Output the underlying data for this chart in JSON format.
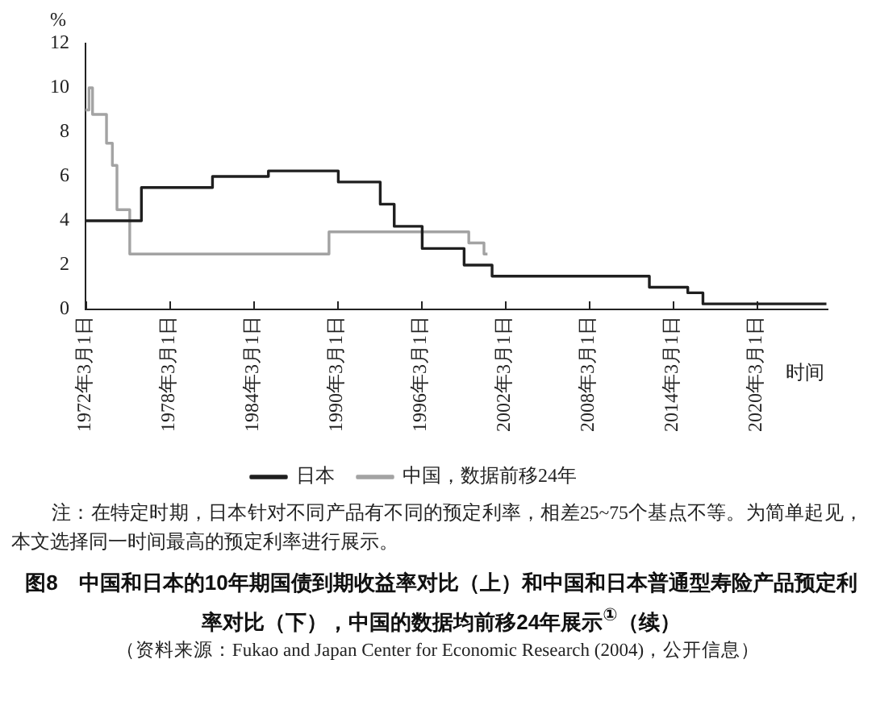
{
  "chart_data": {
    "type": "step",
    "title": "图8　中国和日本的10年期国债到期收益率对比（上）和中国和日本普通型寿险产品预定利率对比（下），中国的数据均前移24年展示$^{①}$（续）",
    "xlabel": "时间",
    "ylabel": "%",
    "annotations": [
      "注：在特定时期，日本针对不同产品有不同的预定利率，相差25~75个基点不等。为简单起见，本文选择同一时间最高的预定利率进行展示。",
      "（资料来源：Fukao and Japan Center for Economic Research (2004)，公开信息）"
    ],
    "series": [
      {
        "name": "日本",
        "color": "#1f1f1f",
        "x": [
          "1972-03-01",
          "1976-03-01",
          "1981-04-01",
          "1985-04-01",
          "1990-04-01",
          "1993-04-01",
          "1994-04-01",
          "1996-04-01",
          "1999-04-01",
          "2001-04-01",
          "2012-07-01",
          "2015-04-01",
          "2016-05-01",
          "2025-03-01"
        ],
        "values": [
          4.0,
          5.5,
          6.0,
          6.25,
          5.75,
          4.75,
          3.75,
          2.75,
          2.0,
          1.5,
          1.0,
          0.75,
          0.25,
          0.25
        ]
      },
      {
        "name": "中国，数据前移24年",
        "color": "#a3a3a3",
        "x": [
          "1972-03-01",
          "1972-06-01",
          "1972-09-01",
          "1973-09-01",
          "1974-02-01",
          "1974-06-01",
          "1975-05-01",
          "1989-08-01",
          "1999-08-01",
          "2000-09-01",
          "2000-12-01"
        ],
        "values": [
          9.0,
          10.0,
          8.8,
          7.5,
          6.5,
          4.5,
          2.5,
          3.5,
          3.0,
          2.5,
          2.5
        ]
      }
    ],
    "xlim": [
      "1972-03-01",
      "2025-04-01"
    ],
    "xticks": [
      {
        "value": "1972-03-01",
        "label": "1972年3月1日"
      },
      {
        "value": "1978-03-01",
        "label": "1978年3月1日"
      },
      {
        "value": "1984-03-01",
        "label": "1984年3月1日"
      },
      {
        "value": "1990-03-01",
        "label": "1990年3月1日"
      },
      {
        "value": "1996-03-01",
        "label": "1996年3月1日"
      },
      {
        "value": "2002-03-01",
        "label": "2002年3月1日"
      },
      {
        "value": "2008-03-01",
        "label": "2008年3月1日"
      },
      {
        "value": "2014-03-01",
        "label": "2014年3月1日"
      },
      {
        "value": "2020-03-01",
        "label": "2020年3月1日"
      }
    ],
    "ylim": [
      0,
      12
    ],
    "yticks": [
      0,
      2,
      4,
      6,
      8,
      10,
      12
    ],
    "grid": false,
    "legend": "bottom"
  }
}
